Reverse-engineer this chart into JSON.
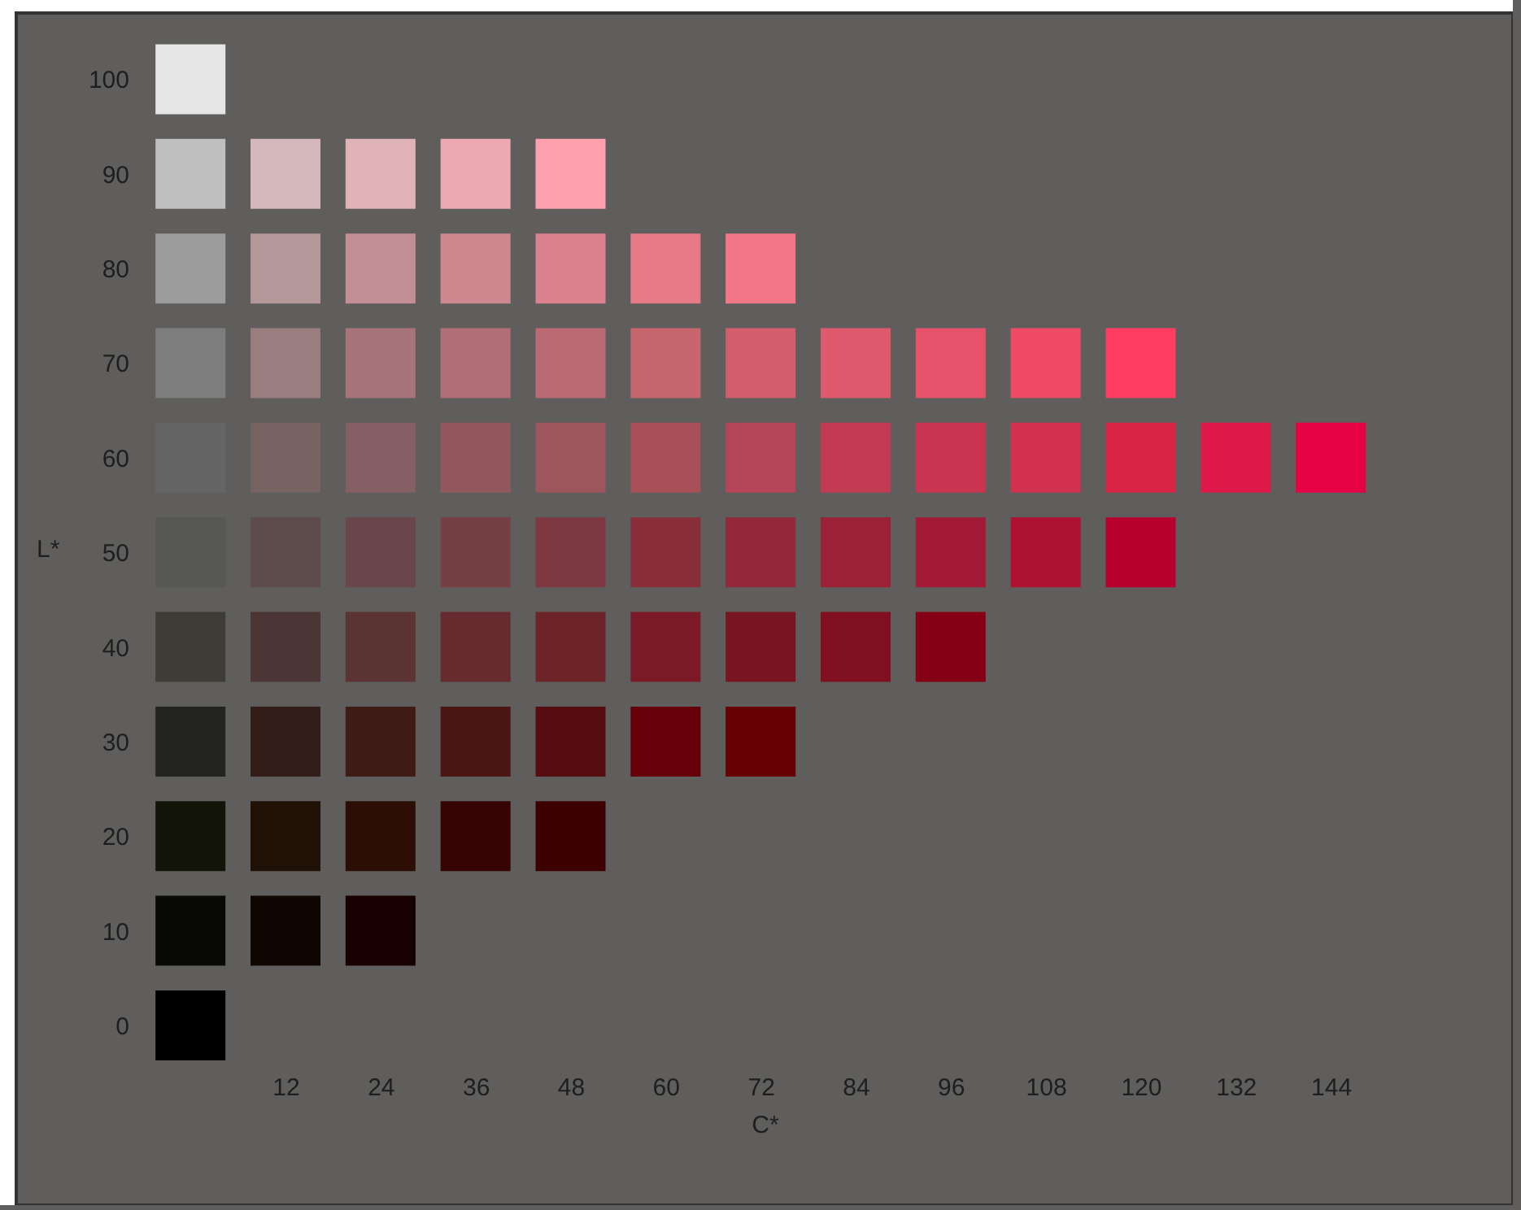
{
  "chart_data": {
    "type": "scatter",
    "xlabel": "C*",
    "ylabel": "L*",
    "marker": "square",
    "x": [
      0,
      0,
      12,
      24,
      36,
      48,
      0,
      12,
      24,
      36,
      48,
      60,
      72,
      0,
      12,
      24,
      36,
      48,
      60,
      72,
      84,
      96,
      108,
      120,
      0,
      12,
      24,
      36,
      48,
      60,
      72,
      84,
      96,
      108,
      120,
      132,
      144,
      0,
      12,
      24,
      36,
      48,
      60,
      72,
      84,
      96,
      108,
      120,
      0,
      12,
      24,
      36,
      48,
      60,
      72,
      84,
      96,
      0,
      12,
      24,
      36,
      48,
      60,
      72,
      0,
      12,
      24,
      36,
      48,
      0,
      12,
      24,
      0
    ],
    "values": [
      100,
      90,
      90,
      90,
      90,
      90,
      80,
      80,
      80,
      80,
      80,
      80,
      80,
      70,
      70,
      70,
      70,
      70,
      70,
      70,
      70,
      70,
      70,
      70,
      60,
      60,
      60,
      60,
      60,
      60,
      60,
      60,
      60,
      60,
      60,
      60,
      60,
      50,
      50,
      50,
      50,
      50,
      50,
      50,
      50,
      50,
      50,
      50,
      40,
      40,
      40,
      40,
      40,
      40,
      40,
      40,
      40,
      30,
      30,
      30,
      30,
      30,
      30,
      30,
      20,
      20,
      20,
      20,
      20,
      10,
      10,
      10,
      0
    ],
    "colors": [
      "#e6e6e6",
      "#bfbfbf",
      "#d4b8bb",
      "#e0b3b9",
      "#eea8b2",
      "#ffa0ae",
      "#9c9c9c",
      "#b49798",
      "#c38f96",
      "#d08890",
      "#dc818e",
      "#e87a88",
      "#f47687",
      "#7e7e7e",
      "#9a7e7f",
      "#a6747a",
      "#b26e77",
      "#bc6a74",
      "#c8666e",
      "#d45d6c",
      "#de5a6c",
      "#e6526a",
      "#ef4a66",
      "#ff3d62",
      "#666565",
      "#786363",
      "#855f63",
      "#92585e",
      "#9d565c",
      "#a84f58",
      "#b7455a",
      "#c23b52",
      "#c93551",
      "#d2304f",
      "#d92446",
      "#de1848",
      "#e60044",
      "#575756",
      "#5e4c4d",
      "#684649",
      "#753f44",
      "#7e3841",
      "#8a2f3a",
      "#93283a",
      "#9c2036",
      "#a21a36",
      "#ae1131",
      "#b8002f",
      "#3d3c37",
      "#4b3635",
      "#5a3332",
      "#652b2e",
      "#6c2429",
      "#7b1a26",
      "#781521",
      "#80101f",
      "#860015",
      "#23231f",
      "#321d18",
      "#3f1b16",
      "#4b1513",
      "#560d0f",
      "#660008",
      "#660004",
      "#131408",
      "#201106",
      "#2d0e04",
      "#340502",
      "#3c0000",
      "#080904",
      "#0f0602",
      "#180000",
      "#000000"
    ],
    "xlim": [
      -22,
      167
    ],
    "ylim": [
      -19,
      107
    ],
    "xticks": [
      12,
      24,
      36,
      48,
      60,
      72,
      84,
      96,
      108,
      120,
      132,
      144
    ],
    "yticks": [
      0,
      10,
      20,
      30,
      40,
      50,
      60,
      70,
      80,
      90,
      100
    ]
  }
}
